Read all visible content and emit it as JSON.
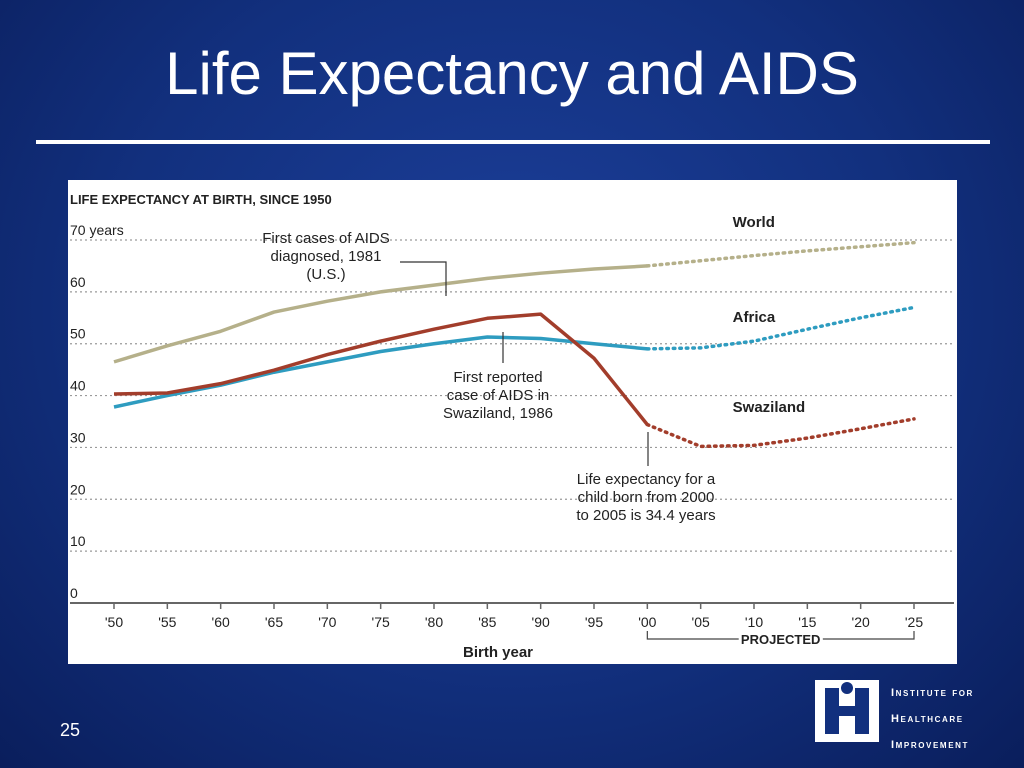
{
  "slide": {
    "title": "Life Expectancy and AIDS",
    "number": "25"
  },
  "logo": {
    "lines": [
      "Institute for",
      "Healthcare",
      "Improvement"
    ]
  },
  "colors": {
    "background": "#12307e",
    "world": "#b5b08a",
    "africa": "#2e9cc0",
    "swaziland": "#a23d2b"
  },
  "chart_data": {
    "type": "line",
    "title": "LIFE EXPECTANCY AT BIRTH, SINCE 1950",
    "xlabel": "Birth year",
    "x_ticks": [
      "'50",
      "'55",
      "'60",
      "'65",
      "'70",
      "'75",
      "'80",
      "'85",
      "'90",
      "'95",
      "'00",
      "'05",
      "'10",
      "'15",
      "'20",
      "'25"
    ],
    "y_ticks": [
      "70 years",
      "60",
      "50",
      "40",
      "30",
      "20",
      "10",
      "0"
    ],
    "ylim": [
      0,
      70
    ],
    "xlim": [
      1950,
      2025
    ],
    "projected_label": "PROJECTED",
    "projected_from": 2000,
    "grid": true,
    "series": [
      {
        "name": "World",
        "color_key": "world",
        "x": [
          1950,
          1955,
          1960,
          1965,
          1970,
          1975,
          1980,
          1985,
          1990,
          1995,
          2000,
          2005,
          2010,
          2015,
          2020,
          2025
        ],
        "y": [
          46.5,
          49.6,
          52.4,
          56.1,
          58.2,
          60.0,
          61.3,
          62.6,
          63.6,
          64.4,
          65.0,
          66.0,
          67.0,
          67.9,
          68.7,
          69.5
        ],
        "label_pos": [
          2008,
          72.5
        ]
      },
      {
        "name": "Africa",
        "color_key": "africa",
        "x": [
          1950,
          1955,
          1960,
          1965,
          1970,
          1975,
          1980,
          1985,
          1990,
          1995,
          2000,
          2005,
          2010,
          2015,
          2020,
          2025
        ],
        "y": [
          37.8,
          40.0,
          42.0,
          44.5,
          46.5,
          48.5,
          50.0,
          51.3,
          51.0,
          50.0,
          49.0,
          49.2,
          50.5,
          52.8,
          55.0,
          57.0
        ],
        "label_pos": [
          2008,
          54.2
        ]
      },
      {
        "name": "Swaziland",
        "color_key": "swaziland",
        "x": [
          1950,
          1955,
          1960,
          1965,
          1970,
          1975,
          1980,
          1985,
          1990,
          1995,
          2000,
          2005,
          2010,
          2015,
          2020,
          2025
        ],
        "y": [
          40.3,
          40.5,
          42.3,
          44.9,
          47.9,
          50.5,
          52.8,
          54.9,
          55.7,
          47.2,
          34.4,
          30.2,
          30.4,
          31.8,
          33.6,
          35.5
        ],
        "label_pos": [
          2008,
          36.8
        ]
      }
    ],
    "annotations": [
      {
        "lines": [
          "First cases of AIDS",
          "diagnosed, 1981",
          "(U.S.)"
        ]
      },
      {
        "lines": [
          "First reported",
          "case of AIDS in",
          "Swaziland, 1986"
        ]
      },
      {
        "lines": [
          "Life expectancy for a",
          "child born from 2000",
          "to 2005 is 34.4 years"
        ]
      }
    ]
  }
}
